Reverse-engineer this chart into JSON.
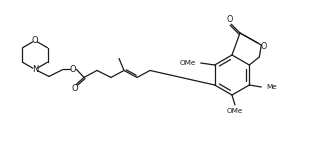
{
  "bg_color": "#ffffff",
  "line_color": "#1a1a1a",
  "line_width": 0.9,
  "font_size": 5.5,
  "fig_width": 3.29,
  "fig_height": 1.67,
  "dpi": 100,
  "xlim": [
    0,
    329
  ],
  "ylim": [
    0,
    167
  ]
}
